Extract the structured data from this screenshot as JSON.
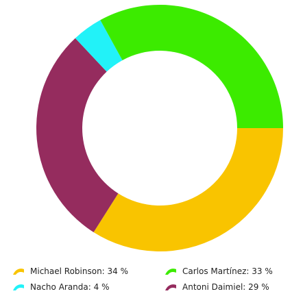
{
  "chart_data": {
    "type": "pie",
    "title": "",
    "donut": true,
    "legend_position": "bottom",
    "slices": [
      {
        "label": "Michael Robinson",
        "value": 34,
        "color": "#F9C400",
        "legend_text": "Michael Robinson: 34 %"
      },
      {
        "label": "Antoni Daimiel",
        "value": 29,
        "color": "#952C5E",
        "legend_text": "Antoni Daimiel: 29 %"
      },
      {
        "label": "Nacho Aranda",
        "value": 4,
        "color": "#22F2F8",
        "legend_text": "Nacho Aranda: 4 %"
      },
      {
        "label": "Carlos Martínez",
        "value": 33,
        "color": "#3CEB00",
        "legend_text": "Carlos Martínez: 33 %"
      }
    ]
  }
}
